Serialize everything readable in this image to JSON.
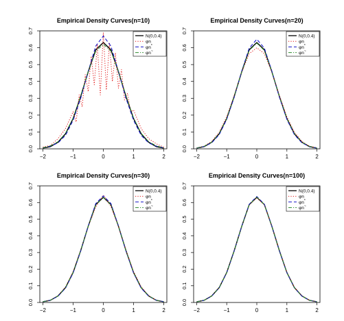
{
  "colors": {
    "normal": "#000000",
    "phi1": "#e01010",
    "phi2": "#1515c8",
    "phi3": "#2e8b2e"
  },
  "legend_entries": [
    {
      "label": "N(0,0.4)",
      "style": "solid",
      "color_key": "normal"
    },
    {
      "label": "φn",
      "subscript": "",
      "style": "dotted",
      "color_key": "phi1"
    },
    {
      "label": "φn",
      "subscript": "*",
      "style": "dashed",
      "color_key": "phi2"
    },
    {
      "label": "φn",
      "subscript": "~",
      "style": "dashdot",
      "color_key": "phi3"
    }
  ],
  "chart_data": [
    {
      "type": "line",
      "title": "Empirical Density Curves(n=10)",
      "xlabel": "",
      "ylabel": "",
      "xlim": [
        -2.1,
        2.1
      ],
      "ylim": [
        0,
        0.7
      ],
      "xticks": [
        -2,
        -1,
        0,
        1,
        2
      ],
      "yticks": [
        0.0,
        0.1,
        0.2,
        0.3,
        0.4,
        0.5,
        0.6,
        0.7
      ],
      "grid": false,
      "legend": "top-right",
      "series": [
        {
          "name": "N(0,0.4)",
          "x": [
            -2.0,
            -1.75,
            -1.5,
            -1.25,
            -1.0,
            -0.75,
            -0.5,
            -0.25,
            0.0,
            0.25,
            0.5,
            0.75,
            1.0,
            1.25,
            1.5,
            1.75,
            2.0
          ],
          "y": [
            0.004,
            0.013,
            0.039,
            0.089,
            0.18,
            0.311,
            0.458,
            0.588,
            0.631,
            0.588,
            0.458,
            0.311,
            0.18,
            0.089,
            0.039,
            0.013,
            0.004
          ]
        },
        {
          "name": "φn",
          "x": [
            -2.0,
            -1.75,
            -1.5,
            -1.25,
            -1.0,
            -0.9,
            -0.8,
            -0.7,
            -0.6,
            -0.5,
            -0.4,
            -0.3,
            -0.2,
            -0.1,
            0.0,
            0.1,
            0.2,
            0.3,
            0.4,
            0.5,
            0.6,
            0.7,
            0.8,
            0.9,
            1.0,
            1.25,
            1.5,
            1.75,
            2.0
          ],
          "y": [
            0.01,
            0.02,
            0.06,
            0.12,
            0.22,
            0.16,
            0.32,
            0.25,
            0.44,
            0.34,
            0.55,
            0.38,
            0.62,
            0.32,
            0.69,
            0.35,
            0.63,
            0.4,
            0.57,
            0.36,
            0.47,
            0.29,
            0.33,
            0.22,
            0.23,
            0.12,
            0.06,
            0.03,
            0.01
          ]
        },
        {
          "name": "φn*",
          "x": [
            -2.0,
            -1.75,
            -1.5,
            -1.25,
            -1.0,
            -0.75,
            -0.5,
            -0.25,
            0.0,
            0.25,
            0.5,
            0.75,
            1.0,
            1.25,
            1.5,
            1.75,
            2.0
          ],
          "y": [
            0.006,
            0.016,
            0.035,
            0.08,
            0.17,
            0.3,
            0.46,
            0.61,
            0.67,
            0.61,
            0.46,
            0.3,
            0.17,
            0.08,
            0.035,
            0.016,
            0.006
          ]
        },
        {
          "name": "φn~",
          "x": [
            -2.0,
            -1.75,
            -1.5,
            -1.25,
            -1.0,
            -0.75,
            -0.5,
            -0.25,
            0.0,
            0.25,
            0.5,
            0.75,
            1.0,
            1.25,
            1.5,
            1.75,
            2.0
          ],
          "y": [
            0.006,
            0.018,
            0.042,
            0.092,
            0.183,
            0.315,
            0.46,
            0.58,
            0.62,
            0.58,
            0.46,
            0.315,
            0.183,
            0.092,
            0.042,
            0.018,
            0.006
          ]
        }
      ]
    },
    {
      "type": "line",
      "title": "Empirical Density Curves(n=20)",
      "xlabel": "",
      "ylabel": "",
      "xlim": [
        -2.1,
        2.1
      ],
      "ylim": [
        0,
        0.7
      ],
      "xticks": [
        -2,
        -1,
        0,
        1,
        2
      ],
      "yticks": [
        0.0,
        0.1,
        0.2,
        0.3,
        0.4,
        0.5,
        0.6,
        0.7
      ],
      "grid": false,
      "legend": "top-right",
      "series": [
        {
          "name": "N(0,0.4)",
          "x": [
            -2.0,
            -1.75,
            -1.5,
            -1.25,
            -1.0,
            -0.75,
            -0.5,
            -0.25,
            0.0,
            0.25,
            0.5,
            0.75,
            1.0,
            1.25,
            1.5,
            1.75,
            2.0
          ],
          "y": [
            0.004,
            0.013,
            0.039,
            0.089,
            0.18,
            0.311,
            0.458,
            0.588,
            0.631,
            0.588,
            0.458,
            0.311,
            0.18,
            0.089,
            0.039,
            0.013,
            0.004
          ]
        },
        {
          "name": "φn",
          "x": [
            -2.0,
            -1.75,
            -1.5,
            -1.25,
            -1.0,
            -0.75,
            -0.5,
            -0.25,
            0.0,
            0.25,
            0.5,
            0.75,
            1.0,
            1.25,
            1.5,
            1.75,
            2.0
          ],
          "y": [
            0.006,
            0.016,
            0.044,
            0.098,
            0.19,
            0.318,
            0.455,
            0.565,
            0.6,
            0.565,
            0.455,
            0.318,
            0.19,
            0.098,
            0.044,
            0.016,
            0.006
          ]
        },
        {
          "name": "φn*",
          "x": [
            -2.0,
            -1.75,
            -1.5,
            -1.25,
            -1.0,
            -0.75,
            -0.5,
            -0.25,
            0.0,
            0.25,
            0.5,
            0.75,
            1.0,
            1.25,
            1.5,
            1.75,
            2.0
          ],
          "y": [
            0.005,
            0.014,
            0.036,
            0.084,
            0.175,
            0.306,
            0.462,
            0.598,
            0.65,
            0.598,
            0.462,
            0.306,
            0.175,
            0.084,
            0.036,
            0.014,
            0.005
          ]
        },
        {
          "name": "φn~",
          "x": [
            -2.0,
            -1.75,
            -1.5,
            -1.25,
            -1.0,
            -0.75,
            -0.5,
            -0.25,
            0.0,
            0.25,
            0.5,
            0.75,
            1.0,
            1.25,
            1.5,
            1.75,
            2.0
          ],
          "y": [
            0.005,
            0.015,
            0.04,
            0.091,
            0.182,
            0.312,
            0.458,
            0.584,
            0.627,
            0.584,
            0.458,
            0.312,
            0.182,
            0.091,
            0.04,
            0.015,
            0.005
          ]
        }
      ]
    },
    {
      "type": "line",
      "title": "Empirical Density Curves(n=30)",
      "xlabel": "",
      "ylabel": "",
      "xlim": [
        -2.1,
        2.1
      ],
      "ylim": [
        0,
        0.7
      ],
      "xticks": [
        -2,
        -1,
        0,
        1,
        2
      ],
      "yticks": [
        0.0,
        0.1,
        0.2,
        0.3,
        0.4,
        0.5,
        0.6,
        0.7
      ],
      "grid": false,
      "legend": "top-right",
      "series": [
        {
          "name": "N(0,0.4)",
          "x": [
            -2.0,
            -1.75,
            -1.5,
            -1.25,
            -1.0,
            -0.75,
            -0.5,
            -0.25,
            0.0,
            0.25,
            0.5,
            0.75,
            1.0,
            1.25,
            1.5,
            1.75,
            2.0
          ],
          "y": [
            0.004,
            0.013,
            0.039,
            0.089,
            0.18,
            0.311,
            0.458,
            0.588,
            0.631,
            0.588,
            0.458,
            0.311,
            0.18,
            0.089,
            0.039,
            0.013,
            0.004
          ]
        },
        {
          "name": "φn",
          "x": [
            -2.0,
            -1.75,
            -1.5,
            -1.25,
            -1.0,
            -0.75,
            -0.5,
            -0.25,
            0.0,
            0.25,
            0.5,
            0.75,
            1.0,
            1.25,
            1.5,
            1.75,
            2.0
          ],
          "y": [
            0.005,
            0.014,
            0.04,
            0.094,
            0.186,
            0.314,
            0.456,
            0.574,
            0.645,
            0.576,
            0.456,
            0.314,
            0.186,
            0.094,
            0.04,
            0.014,
            0.005
          ]
        },
        {
          "name": "φn*",
          "x": [
            -2.0,
            -1.75,
            -1.5,
            -1.25,
            -1.0,
            -0.75,
            -0.5,
            -0.25,
            0.0,
            0.25,
            0.5,
            0.75,
            1.0,
            1.25,
            1.5,
            1.75,
            2.0
          ],
          "y": [
            0.005,
            0.014,
            0.037,
            0.086,
            0.177,
            0.308,
            0.46,
            0.594,
            0.64,
            0.594,
            0.46,
            0.308,
            0.177,
            0.086,
            0.037,
            0.014,
            0.005
          ]
        },
        {
          "name": "φn~",
          "x": [
            -2.0,
            -1.75,
            -1.5,
            -1.25,
            -1.0,
            -0.75,
            -0.5,
            -0.25,
            0.0,
            0.25,
            0.5,
            0.75,
            1.0,
            1.25,
            1.5,
            1.75,
            2.0
          ],
          "y": [
            0.005,
            0.014,
            0.039,
            0.09,
            0.181,
            0.311,
            0.458,
            0.586,
            0.63,
            0.586,
            0.458,
            0.311,
            0.181,
            0.09,
            0.039,
            0.014,
            0.005
          ]
        }
      ]
    },
    {
      "type": "line",
      "title": "Empirical Density Curves(n=100)",
      "xlabel": "",
      "ylabel": "",
      "xlim": [
        -2.1,
        2.1
      ],
      "ylim": [
        0,
        0.7
      ],
      "xticks": [
        -2,
        -1,
        0,
        1,
        2
      ],
      "yticks": [
        0.0,
        0.1,
        0.2,
        0.3,
        0.4,
        0.5,
        0.6,
        0.7
      ],
      "grid": false,
      "legend": "top-right",
      "series": [
        {
          "name": "N(0,0.4)",
          "x": [
            -2.0,
            -1.75,
            -1.5,
            -1.25,
            -1.0,
            -0.75,
            -0.5,
            -0.25,
            0.0,
            0.25,
            0.5,
            0.75,
            1.0,
            1.25,
            1.5,
            1.75,
            2.0
          ],
          "y": [
            0.004,
            0.013,
            0.039,
            0.089,
            0.18,
            0.311,
            0.458,
            0.588,
            0.631,
            0.588,
            0.458,
            0.311,
            0.18,
            0.089,
            0.039,
            0.013,
            0.004
          ]
        },
        {
          "name": "φn",
          "x": [
            -2.0,
            -1.75,
            -1.5,
            -1.25,
            -1.0,
            -0.75,
            -0.5,
            -0.25,
            0.0,
            0.25,
            0.5,
            0.75,
            1.0,
            1.25,
            1.5,
            1.75,
            2.0
          ],
          "y": [
            0.004,
            0.013,
            0.04,
            0.09,
            0.182,
            0.312,
            0.458,
            0.586,
            0.628,
            0.586,
            0.458,
            0.312,
            0.182,
            0.09,
            0.04,
            0.013,
            0.004
          ]
        },
        {
          "name": "φn*",
          "x": [
            -2.0,
            -1.75,
            -1.5,
            -1.25,
            -1.0,
            -0.75,
            -0.5,
            -0.25,
            0.0,
            0.25,
            0.5,
            0.75,
            1.0,
            1.25,
            1.5,
            1.75,
            2.0
          ],
          "y": [
            0.004,
            0.013,
            0.038,
            0.088,
            0.179,
            0.31,
            0.459,
            0.59,
            0.636,
            0.59,
            0.459,
            0.31,
            0.179,
            0.088,
            0.038,
            0.013,
            0.004
          ]
        },
        {
          "name": "φn~",
          "x": [
            -2.0,
            -1.75,
            -1.5,
            -1.25,
            -1.0,
            -0.75,
            -0.5,
            -0.25,
            0.0,
            0.25,
            0.5,
            0.75,
            1.0,
            1.25,
            1.5,
            1.75,
            2.0
          ],
          "y": [
            0.004,
            0.013,
            0.039,
            0.089,
            0.18,
            0.311,
            0.458,
            0.588,
            0.632,
            0.588,
            0.458,
            0.311,
            0.18,
            0.089,
            0.039,
            0.013,
            0.004
          ]
        }
      ]
    }
  ]
}
